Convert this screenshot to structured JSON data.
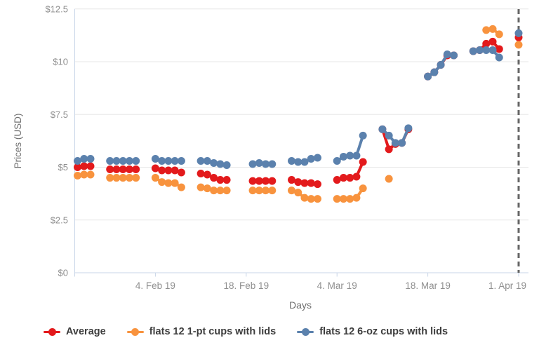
{
  "chart_data": {
    "type": "line",
    "title": "",
    "xlabel": "Days",
    "ylabel": "Prices (USD)",
    "ylim": [
      0,
      12.5
    ],
    "grid": true,
    "legend_position": "bottom",
    "y_ticks": [
      {
        "value": 0,
        "label": "$0"
      },
      {
        "value": 2.5,
        "label": "$2.5"
      },
      {
        "value": 5,
        "label": "$5"
      },
      {
        "value": 7.5,
        "label": "$7.5"
      },
      {
        "value": 10,
        "label": "$10"
      },
      {
        "value": 12.5,
        "label": "$12.5"
      }
    ],
    "x_ticks": [
      {
        "date": "2019-02-04",
        "label": "4. Feb 19"
      },
      {
        "date": "2019-02-18",
        "label": "18. Feb 19"
      },
      {
        "date": "2019-03-04",
        "label": "4. Mar 19"
      },
      {
        "date": "2019-03-18",
        "label": "18. Mar 19"
      },
      {
        "date": "2019-04-01",
        "label": "1. Apr 19"
      }
    ],
    "dashed_vline_date": "2019-04-01",
    "dates": [
      "2019-01-23",
      "2019-01-24",
      "2019-01-25",
      "2019-01-28",
      "2019-01-29",
      "2019-01-30",
      "2019-01-31",
      "2019-02-01",
      "2019-02-04",
      "2019-02-05",
      "2019-02-06",
      "2019-02-07",
      "2019-02-08",
      "2019-02-11",
      "2019-02-12",
      "2019-02-13",
      "2019-02-14",
      "2019-02-15",
      "2019-02-19",
      "2019-02-20",
      "2019-02-21",
      "2019-02-22",
      "2019-02-25",
      "2019-02-26",
      "2019-02-27",
      "2019-02-28",
      "2019-03-01",
      "2019-03-04",
      "2019-03-05",
      "2019-03-06",
      "2019-03-07",
      "2019-03-08",
      "2019-03-11",
      "2019-03-12",
      "2019-03-13",
      "2019-03-14",
      "2019-03-15",
      "2019-03-18",
      "2019-03-19",
      "2019-03-20",
      "2019-03-21",
      "2019-03-22",
      "2019-03-25",
      "2019-03-26",
      "2019-03-27",
      "2019-03-28",
      "2019-03-29",
      "2019-04-01"
    ],
    "series": [
      {
        "name": "Average",
        "color": "#e31a1c",
        "values": [
          5.0,
          5.05,
          5.05,
          4.9,
          4.9,
          4.9,
          4.9,
          4.9,
          4.95,
          4.85,
          4.85,
          4.85,
          4.75,
          4.7,
          4.65,
          4.5,
          4.4,
          4.4,
          4.35,
          4.35,
          4.35,
          4.35,
          4.4,
          4.3,
          4.25,
          4.25,
          4.2,
          4.4,
          4.5,
          4.5,
          4.55,
          5.25,
          6.8,
          5.85,
          6.1,
          6.15,
          6.8,
          9.3,
          9.5,
          9.85,
          10.3,
          10.3,
          10.5,
          10.55,
          10.85,
          10.95,
          10.6,
          11.15
        ]
      },
      {
        "name": "flats 12 1-pt cups with lids",
        "color": "#f8933e",
        "values": [
          4.6,
          4.65,
          4.65,
          4.5,
          4.5,
          4.5,
          4.5,
          4.5,
          4.5,
          4.3,
          4.25,
          4.25,
          4.05,
          4.05,
          4.0,
          3.9,
          3.9,
          3.9,
          3.9,
          3.9,
          3.9,
          3.9,
          3.9,
          3.8,
          3.55,
          3.5,
          3.5,
          3.5,
          3.5,
          3.5,
          3.55,
          4.0,
          null,
          4.45,
          null,
          null,
          null,
          null,
          null,
          null,
          null,
          null,
          null,
          null,
          11.5,
          11.55,
          11.3,
          10.8
        ]
      },
      {
        "name": "flats 12 6-oz cups with lids",
        "color": "#5b81ad",
        "values": [
          5.3,
          5.4,
          5.4,
          5.3,
          5.3,
          5.3,
          5.3,
          5.3,
          5.4,
          5.3,
          5.3,
          5.3,
          5.3,
          5.3,
          5.3,
          5.2,
          5.15,
          5.1,
          5.15,
          5.2,
          5.15,
          5.15,
          5.3,
          5.25,
          5.25,
          5.4,
          5.45,
          5.3,
          5.5,
          5.55,
          5.55,
          6.5,
          6.8,
          6.5,
          6.15,
          6.15,
          6.85,
          9.3,
          9.5,
          9.85,
          10.35,
          10.3,
          10.5,
          10.55,
          10.55,
          10.55,
          10.2,
          11.35
        ]
      }
    ]
  },
  "colors": {
    "grid": "#e7e7e7",
    "axis": "#c9d6e8",
    "tick_label": "#8f8f8f",
    "axis_title": "#6f6f6f",
    "dashed_line": "#666666",
    "legend_text": "#3d3d3d",
    "background": "#ffffff"
  }
}
